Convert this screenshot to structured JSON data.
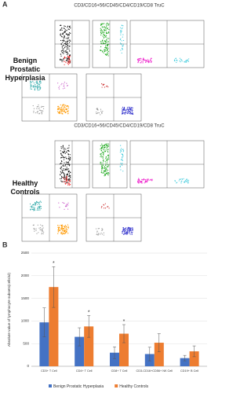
{
  "figure": {
    "panel_a_label": "A",
    "panel_b_label": "B",
    "groups": [
      {
        "name": "Benign Prostatic Hyperplasia",
        "plot_title": "CD3/CD16+56/CD45/CD4/CD19/CD8 TruC"
      },
      {
        "name": "Healthy Controls",
        "plot_title": "CD3/CD16+56/CD45/CD4/CD19/CD8 TruC"
      }
    ]
  },
  "chart_data": {
    "type": "bar",
    "y_label": "Absolute value of lymphocyte subsets(cells/ul)",
    "categories": [
      "CD3+ T Cell",
      "CD4+ T Cell",
      "CD8+ T Cell",
      "CD3-CD16+CD56+ NK Cell",
      "CD19+ B Cell"
    ],
    "series": [
      {
        "name": "Benign Prostatic Hyperplasia",
        "color": "#4472c4",
        "values": [
          970,
          650,
          300,
          270,
          180
        ],
        "errors": [
          320,
          200,
          130,
          150,
          60
        ]
      },
      {
        "name": "Healthy Controls",
        "color": "#ed7d31",
        "values": [
          1750,
          880,
          720,
          520,
          330
        ],
        "errors": [
          450,
          240,
          200,
          200,
          120
        ]
      }
    ],
    "significance": [
      "*",
      "*",
      "*",
      null,
      null
    ],
    "ylim": [
      0,
      2500
    ],
    "yticks": [
      0,
      500,
      1000,
      1500,
      2000,
      2500
    ],
    "grid": true
  }
}
